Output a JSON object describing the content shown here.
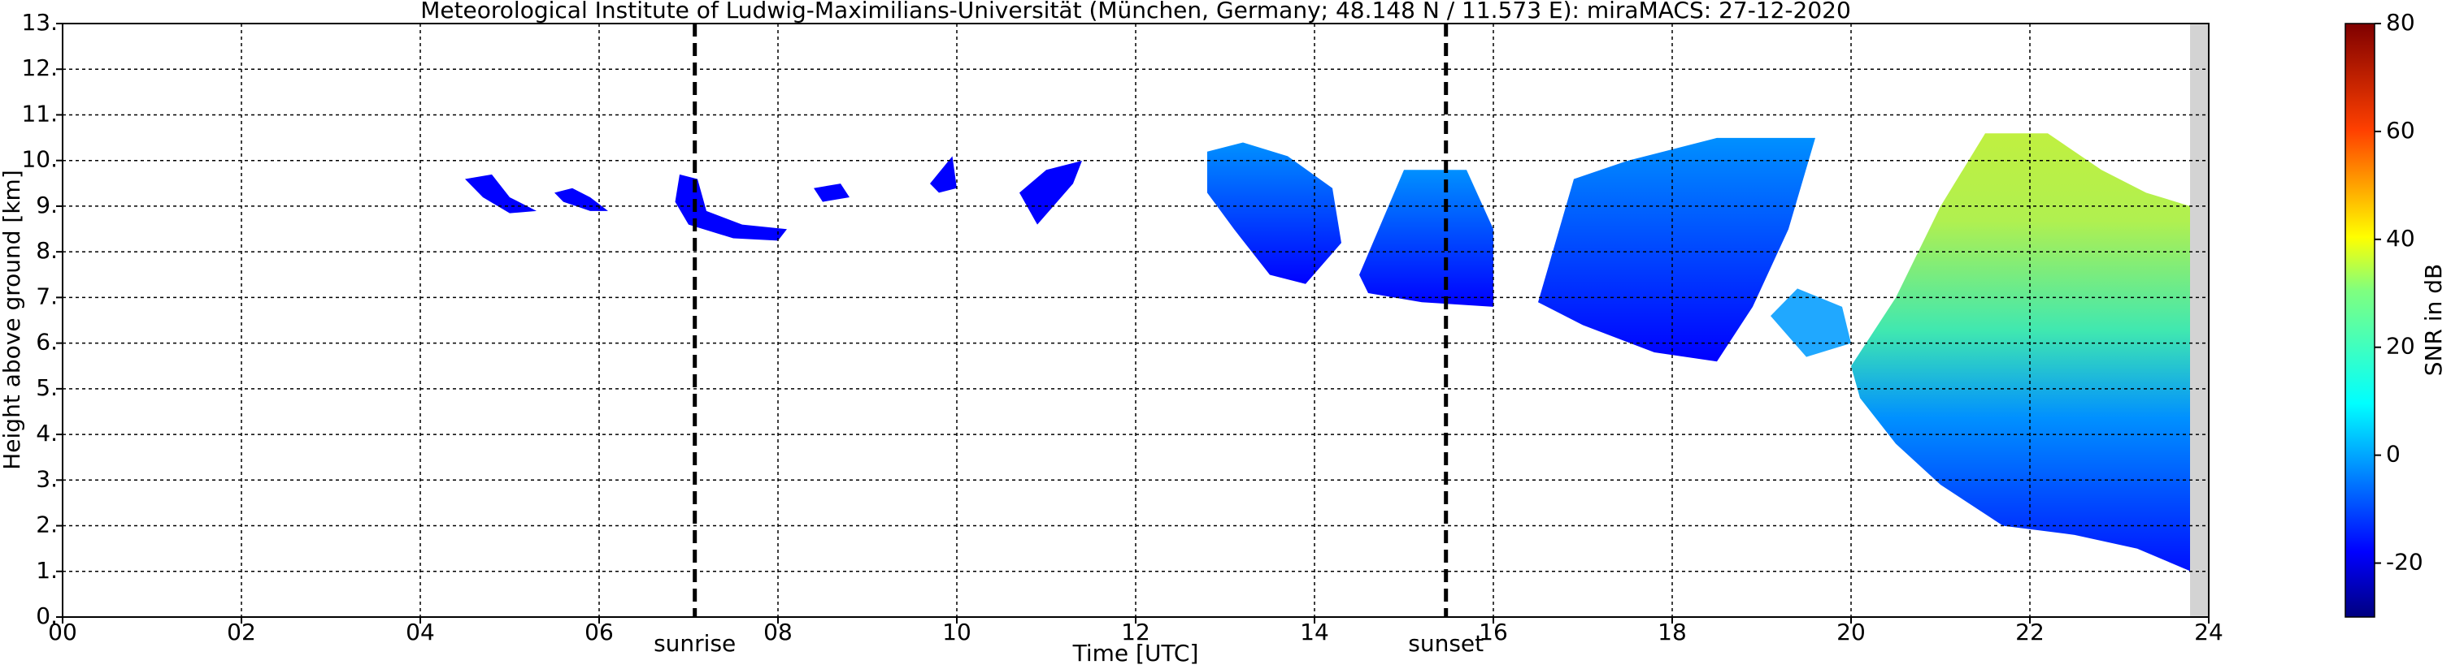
{
  "chart_data": {
    "type": "time-height",
    "title": "Meteorological Institute of Ludwig-Maximilians-Universität (München, Germany; 48.148 N / 11.573 E):    miraMACS: 27-12-2020",
    "xlabel": "Time [UTC]",
    "ylabel": "Height above ground [km]",
    "xlim": [
      0,
      24
    ],
    "xticks": [
      {
        "value": 0,
        "label": "00"
      },
      {
        "value": 2,
        "label": "02"
      },
      {
        "value": 4,
        "label": "04"
      },
      {
        "value": 6,
        "label": "06"
      },
      {
        "value": 8,
        "label": "08"
      },
      {
        "value": 10,
        "label": "10"
      },
      {
        "value": 12,
        "label": "12"
      },
      {
        "value": 14,
        "label": "14"
      },
      {
        "value": 16,
        "label": "16"
      },
      {
        "value": 18,
        "label": "18"
      },
      {
        "value": 20,
        "label": "20"
      },
      {
        "value": 22,
        "label": "22"
      },
      {
        "value": 24,
        "label": "24"
      }
    ],
    "ylim": [
      0,
      13
    ],
    "yticks": [
      {
        "value": 0,
        "label": "0."
      },
      {
        "value": 1,
        "label": "1."
      },
      {
        "value": 2,
        "label": "2."
      },
      {
        "value": 3,
        "label": "3."
      },
      {
        "value": 4,
        "label": "4."
      },
      {
        "value": 5,
        "label": "5."
      },
      {
        "value": 6,
        "label": "6."
      },
      {
        "value": 7,
        "label": "7."
      },
      {
        "value": 8,
        "label": "8."
      },
      {
        "value": 9,
        "label": "9."
      },
      {
        "value": 10,
        "label": "10."
      },
      {
        "value": 11,
        "label": "11."
      },
      {
        "value": 12,
        "label": "12."
      },
      {
        "value": 13,
        "label": "13."
      }
    ],
    "grid": true,
    "annotations": [
      {
        "text": "sunrise",
        "x": 7.07
      },
      {
        "text": "sunset",
        "x": 15.47
      }
    ],
    "colorbar": {
      "label": "SNR in dB",
      "lim": [
        -30,
        80
      ],
      "ticks": [
        -20,
        0,
        20,
        40,
        60,
        80
      ]
    }
  }
}
